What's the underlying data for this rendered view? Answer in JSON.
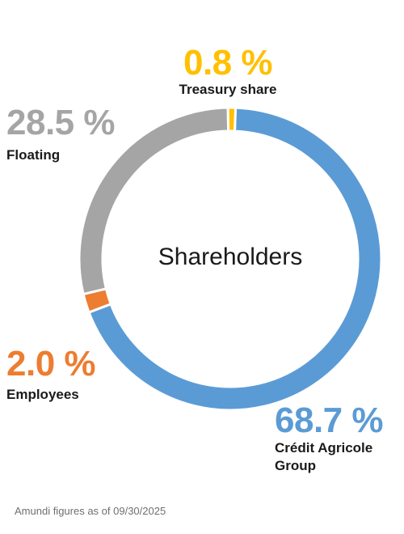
{
  "chart_data": {
    "type": "donut",
    "title": "",
    "center_label": "Shareholders",
    "slices": [
      {
        "key": "credit",
        "label": "Crédit Agricole Group",
        "value": 68.7,
        "display": "68.7 %",
        "color": "#5b9bd5"
      },
      {
        "key": "employees",
        "label": "Employees",
        "value": 2.0,
        "display": "2.0 %",
        "color": "#ed7d31"
      },
      {
        "key": "floating",
        "label": "Floating",
        "value": 28.5,
        "display": "28.5 %",
        "color": "#a5a5a5"
      },
      {
        "key": "treasury",
        "label": "Treasury share",
        "value": 0.8,
        "display": "0.8 %",
        "color": "#ffc000"
      }
    ]
  },
  "footnote": "Amundi figures as of 09/30/2025",
  "labels": {
    "treasury_line": "Treasury share",
    "floating_line": "Floating",
    "employees_line": "Employees",
    "credit_line1": "Crédit Agricole",
    "credit_line2": "Group"
  }
}
